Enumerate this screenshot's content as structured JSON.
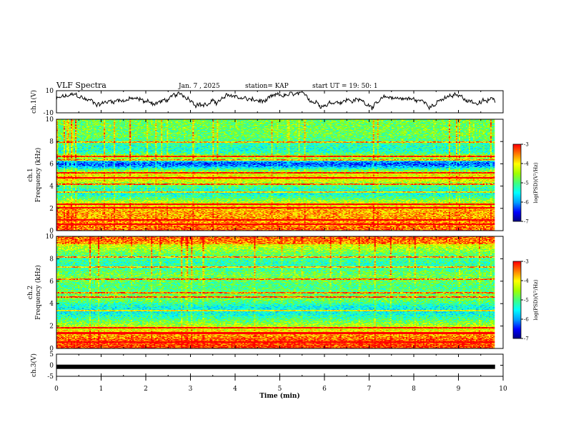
{
  "header": {
    "title": "VLF Spectra",
    "date": "Jan. 7 , 2025",
    "station": "station= KAP",
    "start": "start UT =  19: 50: 1"
  },
  "chart_data": [
    {
      "id": "ch1-waveform",
      "type": "line",
      "ylabel": "ch.1(V)",
      "ylim": [
        -10,
        10
      ],
      "yticks": [
        10,
        -10
      ],
      "xlim": [
        0,
        10
      ]
    },
    {
      "id": "ch1-spectrogram",
      "type": "heatmap",
      "ylabel_channel": "ch.1",
      "ylabel": "Frequency (kHz)",
      "ylim": [
        0,
        10
      ],
      "yticks": [
        0,
        2,
        4,
        6,
        8,
        10
      ],
      "xlim": [
        0,
        10
      ],
      "colorbar": {
        "label": "log(PSD)(V²/Hz)",
        "range": [
          -7,
          -3
        ],
        "ticks": [
          -3,
          -4,
          -5,
          -6,
          -7
        ]
      }
    },
    {
      "id": "ch2-spectrogram",
      "type": "heatmap",
      "ylabel_channel": "ch.2",
      "ylabel": "Frequency (kHz)",
      "ylim": [
        0,
        10
      ],
      "yticks": [
        0,
        2,
        4,
        6,
        8,
        10
      ],
      "xlim": [
        0,
        10
      ],
      "colorbar": {
        "label": "log(PSD)(V²/Hz)",
        "range": [
          -7,
          -3
        ],
        "ticks": [
          -3,
          -4,
          -5,
          -6,
          -7
        ]
      }
    },
    {
      "id": "ch3-waveform",
      "type": "line",
      "ylabel": "ch.3(V)",
      "ylim": [
        -5,
        5
      ],
      "yticks": [
        5,
        0,
        -5
      ],
      "level": -0.7,
      "xlim": [
        0,
        10
      ],
      "xlabel": "Time (min)",
      "xticks": [
        0,
        1,
        2,
        3,
        4,
        5,
        6,
        7,
        8,
        9,
        10
      ]
    }
  ],
  "colors": {
    "axis": "#000000",
    "colormap": [
      "#00007f",
      "#0000ff",
      "#00a0ff",
      "#00ffff",
      "#40ff80",
      "#a0ff00",
      "#ffff00",
      "#ff8000",
      "#ff0000",
      "#ffffff"
    ]
  }
}
